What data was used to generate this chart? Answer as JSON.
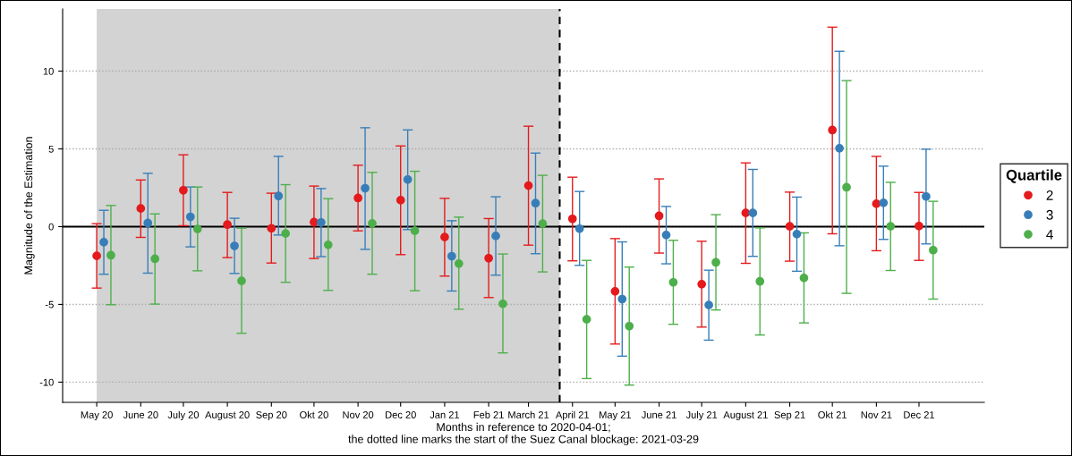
{
  "chart_data": {
    "type": "scatter",
    "ylabel": "Magnitude of the Estimation",
    "xlabel": "Months in reference to 2020-04-01;\nthe dotted line marks the start of the Suez Canal blockage: 2021-03-29",
    "legend_title": "Quartile",
    "legend": "right",
    "grid": "y",
    "marker": "circle",
    "x": [
      "2020-05",
      "2020-06",
      "2020-07",
      "2020-08",
      "2020-09",
      "2020-10",
      "2020-11",
      "2020-12",
      "2021-01",
      "2021-02",
      "2021-03",
      "2021-04",
      "2021-05",
      "2021-06",
      "2021-07",
      "2021-08",
      "2021-09",
      "2021-10",
      "2021-11",
      "2021-12"
    ],
    "xlim": [
      "2020-04-07",
      "2022-01-16"
    ],
    "xticks": [
      {
        "value": "2020-05",
        "label": "May 20"
      },
      {
        "value": "2020-06",
        "label": "June 20"
      },
      {
        "value": "2020-07",
        "label": "July 20"
      },
      {
        "value": "2020-08",
        "label": "August 20"
      },
      {
        "value": "2020-09",
        "label": "Sep 20"
      },
      {
        "value": "2020-10",
        "label": "Okt 20"
      },
      {
        "value": "2020-11",
        "label": "Nov 20"
      },
      {
        "value": "2020-12",
        "label": "Dec 20"
      },
      {
        "value": "2021-01",
        "label": "Jan 21"
      },
      {
        "value": "2021-02",
        "label": "Feb 21"
      },
      {
        "value": "2021-03",
        "label": "March 21"
      },
      {
        "value": "2021-04",
        "label": "April 21"
      },
      {
        "value": "2021-05",
        "label": "May 21"
      },
      {
        "value": "2021-06",
        "label": "June 21"
      },
      {
        "value": "2021-07",
        "label": "July 21"
      },
      {
        "value": "2021-08",
        "label": "August 21"
      },
      {
        "value": "2021-09",
        "label": "Sep 21"
      },
      {
        "value": "2021-10",
        "label": "Okt 21"
      },
      {
        "value": "2021-11",
        "label": "Nov 21"
      },
      {
        "value": "2021-12",
        "label": "Dec 21"
      }
    ],
    "ylim": [
      -11.3,
      14.0
    ],
    "yticks": [
      -10,
      -5,
      0,
      5,
      10
    ],
    "series": [
      {
        "name": "2",
        "color": "#e41a1c",
        "values": [
          -1.88,
          1.17,
          2.34,
          0.13,
          -0.11,
          0.29,
          1.84,
          1.7,
          -0.67,
          -2.03,
          2.64,
          0.5,
          -4.16,
          0.69,
          -3.7,
          0.88,
          0.02,
          6.21,
          1.47,
          0.04
        ],
        "errors": [
          [
            -3.95,
            0.19
          ],
          [
            -0.69,
            3.0
          ],
          [
            0.06,
            4.62
          ],
          [
            -1.99,
            2.2
          ],
          [
            -2.34,
            2.15
          ],
          [
            -2.05,
            2.61
          ],
          [
            -0.27,
            3.95
          ],
          [
            -1.8,
            5.19
          ],
          [
            -3.18,
            1.82
          ],
          [
            -4.56,
            0.52
          ],
          [
            -1.19,
            6.46
          ],
          [
            -2.2,
            3.18
          ],
          [
            -7.55,
            -0.77
          ],
          [
            -1.7,
            3.07
          ],
          [
            -6.46,
            -0.94
          ],
          [
            -2.36,
            4.1
          ],
          [
            -2.22,
            2.22
          ],
          [
            -0.46,
            12.83
          ],
          [
            -1.55,
            4.52
          ],
          [
            -2.17,
            2.2
          ]
        ]
      },
      {
        "name": "3",
        "color": "#377eb8",
        "x": [
          "2020-05-06",
          "2020-06-06",
          "2020-07-06",
          "2020-08-06",
          "2020-09-06",
          "2020-10-06",
          "2020-11-06",
          "2020-12-06",
          "2021-01-06",
          "2021-02-06",
          "2021-03-06",
          "2021-04-06",
          "2021-05-06",
          "2021-06-06",
          "2021-07-06",
          "2021-08-06",
          "2021-09-06",
          "2021-10-06",
          "2021-11-06",
          "2021-12-06"
        ],
        "values": [
          -1.0,
          0.23,
          0.63,
          -1.24,
          1.97,
          0.27,
          2.47,
          3.03,
          -1.9,
          -0.6,
          1.51,
          -0.13,
          -4.66,
          -0.54,
          -5.04,
          0.88,
          -0.48,
          5.04,
          1.53,
          1.94
        ],
        "errors": [
          [
            -3.06,
            1.05
          ],
          [
            -2.99,
            3.43
          ],
          [
            -1.3,
            2.55
          ],
          [
            -3.01,
            0.54
          ],
          [
            -0.54,
            4.52
          ],
          [
            -1.93,
            2.45
          ],
          [
            -1.46,
            6.36
          ],
          [
            -0.19,
            6.22
          ],
          [
            -4.14,
            0.38
          ],
          [
            -3.12,
            1.92
          ],
          [
            -1.74,
            4.73
          ],
          [
            -2.49,
            2.26
          ],
          [
            -8.33,
            -0.98
          ],
          [
            -2.39,
            1.3
          ],
          [
            -7.3,
            -2.8
          ],
          [
            -1.91,
            3.68
          ],
          [
            -2.87,
            1.9
          ],
          [
            -1.23,
            11.28
          ],
          [
            -0.82,
            3.89
          ],
          [
            -1.11,
            4.98
          ]
        ]
      },
      {
        "name": "4",
        "color": "#4daf4a",
        "x": [
          "2020-05-11",
          "2020-06-11",
          "2020-07-11",
          "2020-08-11",
          "2020-09-11",
          "2020-10-11",
          "2020-11-11",
          "2020-12-11",
          "2021-01-11",
          "2021-02-11",
          "2021-03-11",
          "2021-04-11",
          "2021-05-11",
          "2021-06-11",
          "2021-07-11",
          "2021-08-11",
          "2021-09-11",
          "2021-10-11",
          "2021-11-11",
          "2021-12-11"
        ],
        "values": [
          -1.84,
          -2.07,
          -0.15,
          -3.49,
          -0.44,
          -1.17,
          0.21,
          -0.27,
          -2.38,
          -4.96,
          0.19,
          -5.96,
          -6.4,
          -3.58,
          -2.3,
          -3.52,
          -3.3,
          2.53,
          0.02,
          -1.51
        ],
        "errors": [
          [
            -5.02,
            1.36
          ],
          [
            -4.98,
            0.82
          ],
          [
            -2.84,
            2.55
          ],
          [
            -6.86,
            -0.1
          ],
          [
            -3.58,
            2.7
          ],
          [
            -4.1,
            1.8
          ],
          [
            -3.06,
            3.49
          ],
          [
            -4.12,
            3.56
          ],
          [
            -5.31,
            0.61
          ],
          [
            -8.12,
            -1.76
          ],
          [
            -2.91,
            3.3
          ],
          [
            -9.77,
            -2.17
          ],
          [
            -10.19,
            -2.6
          ],
          [
            -6.28,
            -0.88
          ],
          [
            -5.36,
            0.77
          ],
          [
            -6.97,
            -0.08
          ],
          [
            -6.19,
            -0.4
          ],
          [
            -4.29,
            9.39
          ],
          [
            -2.82,
            2.85
          ],
          [
            -4.66,
            1.63
          ]
        ]
      }
    ],
    "ref_lines": [
      {
        "axis": "y",
        "value": 0,
        "color": "#000000",
        "line_style": "solid"
      },
      {
        "axis": "x",
        "value": "2021-03-23",
        "color": "#000000",
        "line_style": "dashed"
      }
    ],
    "bands": [
      {
        "axis": "x",
        "from": "2020-05",
        "to": "2021-03-23",
        "color": "#d3d3d3"
      }
    ]
  }
}
